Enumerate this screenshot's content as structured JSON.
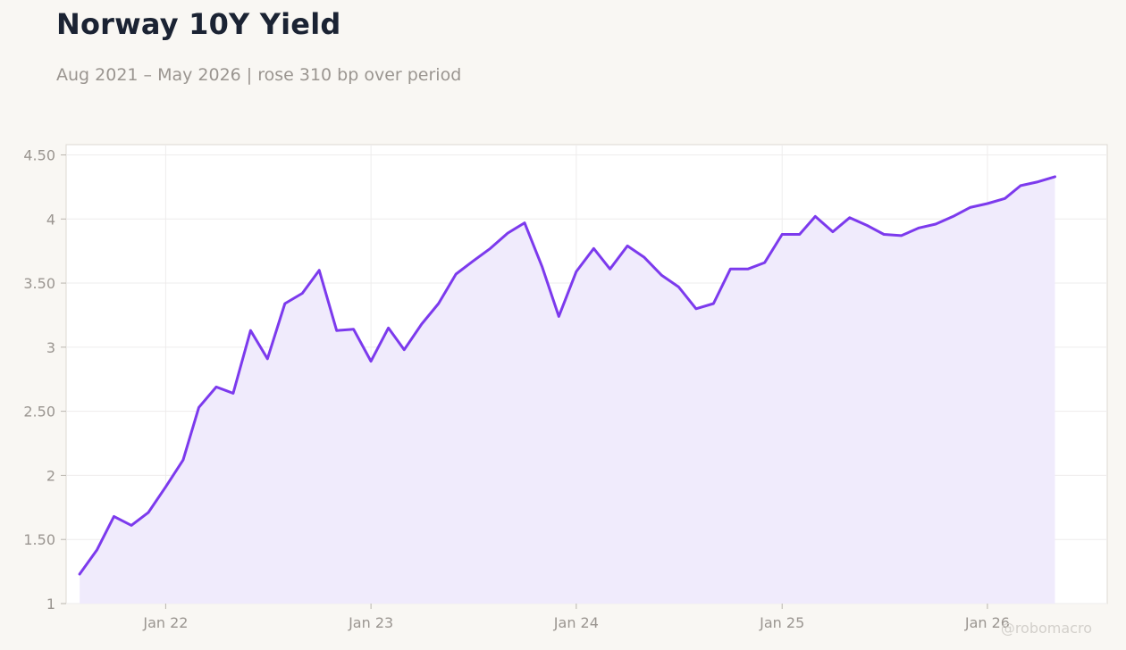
{
  "title": "Norway 10Y Yield",
  "subtitle": "Aug 2021 – May 2026 | rose 310 bp over period",
  "watermark": "@robomacro",
  "colors": {
    "line": "#7c3aed",
    "fill": "#f0ebfc",
    "grid": "#eeecec",
    "axis_text": "#9a9590",
    "title": "#1b2333"
  },
  "chart_data": {
    "type": "area",
    "title": "Norway 10Y Yield",
    "subtitle": "Aug 2021 – May 2026 | rose 310 bp over period",
    "xlabel": "",
    "ylabel": "",
    "ylim": [
      1,
      4.58
    ],
    "xlim": [
      "2021-07-08",
      "2026-08-02"
    ],
    "grid": true,
    "yticks": [
      1,
      1.5,
      2,
      2.5,
      3,
      3.5,
      4,
      4.5
    ],
    "ytick_labels": [
      "1",
      "1.50",
      "2",
      "2.50",
      "3",
      "3.50",
      "4",
      "4.50"
    ],
    "xticks": [
      "2022-01-01",
      "2023-01-01",
      "2024-01-01",
      "2025-01-01",
      "2026-01-01"
    ],
    "xtick_labels": [
      "Jan 22",
      "Jan 23",
      "Jan 24",
      "Jan 25",
      "Jan 26"
    ],
    "series": [
      {
        "x": [
          "2021-08-01",
          "2021-09-01",
          "2021-10-01",
          "2021-11-01",
          "2021-12-01",
          "2022-01-01",
          "2022-02-01",
          "2022-03-01",
          "2022-04-01",
          "2022-05-01",
          "2022-06-01",
          "2022-07-01",
          "2022-08-01",
          "2022-09-01",
          "2022-10-01",
          "2022-11-01",
          "2022-12-01",
          "2023-01-01",
          "2023-02-01",
          "2023-03-01",
          "2023-04-01",
          "2023-05-01",
          "2023-06-01",
          "2023-07-01",
          "2023-08-01",
          "2023-09-01",
          "2023-10-01",
          "2023-11-01",
          "2023-12-01",
          "2024-01-01",
          "2024-02-01",
          "2024-03-01",
          "2024-04-01",
          "2024-05-01",
          "2024-06-01",
          "2024-07-01",
          "2024-08-01",
          "2024-09-01",
          "2024-10-01",
          "2024-11-01",
          "2024-12-01",
          "2025-01-01",
          "2025-02-01",
          "2025-03-01",
          "2025-04-01",
          "2025-05-01",
          "2025-06-01",
          "2025-07-01",
          "2025-08-01",
          "2025-09-01",
          "2025-10-01",
          "2025-11-01",
          "2025-12-01",
          "2026-01-01",
          "2026-02-01",
          "2026-03-01",
          "2026-04-01",
          "2026-05-01"
        ],
        "values": [
          1.23,
          1.42,
          1.68,
          1.61,
          1.71,
          1.91,
          2.12,
          2.53,
          2.69,
          2.64,
          3.13,
          2.91,
          3.34,
          3.42,
          3.6,
          3.13,
          3.14,
          2.89,
          3.15,
          2.98,
          3.18,
          3.34,
          3.57,
          3.67,
          3.77,
          3.89,
          3.97,
          3.63,
          3.24,
          3.59,
          3.77,
          3.61,
          3.79,
          3.7,
          3.56,
          3.47,
          3.3,
          3.34,
          3.61,
          3.61,
          3.66,
          3.88,
          3.88,
          4.02,
          3.9,
          4.01,
          3.95,
          3.88,
          3.87,
          3.93,
          3.96,
          4.02,
          4.09,
          4.12,
          4.16,
          4.26,
          4.29,
          4.33
        ]
      }
    ]
  }
}
